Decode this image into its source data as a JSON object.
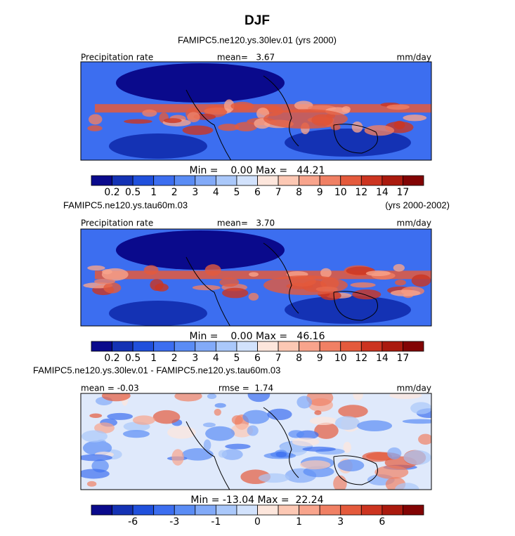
{
  "title": "DJF",
  "colorbar_colors": [
    "#0a0a8c",
    "#1432b4",
    "#2050dc",
    "#3c6ef0",
    "#5a8cf5",
    "#82aaf8",
    "#aac8fa",
    "#d2e2fc",
    "#fde6dc",
    "#fcc8b4",
    "#f8a48c",
    "#f08064",
    "#e45a3c",
    "#cc3420",
    "#aa1a0e",
    "#820404"
  ],
  "panels": [
    {
      "header": "FAMIPC5.ne120.ys.30lev.01 (yrs 2000)",
      "left": "Precipitation rate",
      "center": "mean=   3.67",
      "right": "mm/day",
      "minmax": "Min =    0.00 Max =   44.21",
      "colorbar_labels": [
        "0.2",
        "0.5",
        "1",
        "2",
        "3",
        "4",
        "5",
        "6",
        "7",
        "8",
        "9",
        "10",
        "12",
        "14",
        "17"
      ]
    },
    {
      "header": "FAMIPC5.ne120.ys.tau60m.03",
      "header_right": "(yrs 2000-2002)",
      "left": "Precipitation rate",
      "center": "mean=   3.70",
      "right": "mm/day",
      "minmax": "Min =    0.00 Max =   46.16",
      "colorbar_labels": [
        "0.2",
        "0.5",
        "1",
        "2",
        "3",
        "4",
        "5",
        "6",
        "7",
        "8",
        "9",
        "10",
        "12",
        "14",
        "17"
      ]
    },
    {
      "header": "FAMIPC5.ne120.ys.30lev.01 - FAMIPC5.ne120.ys.tau60m.03",
      "left": "mean = -0.03",
      "center": "rmse =  1.74",
      "right": "mm/day",
      "minmax": "Min = -13.04 Max =  22.24",
      "colorbar_labels": [
        null,
        "-6",
        null,
        "-3",
        null,
        "-1",
        null,
        "0",
        null,
        "1",
        null,
        "3",
        null,
        "6",
        null
      ]
    }
  ]
}
